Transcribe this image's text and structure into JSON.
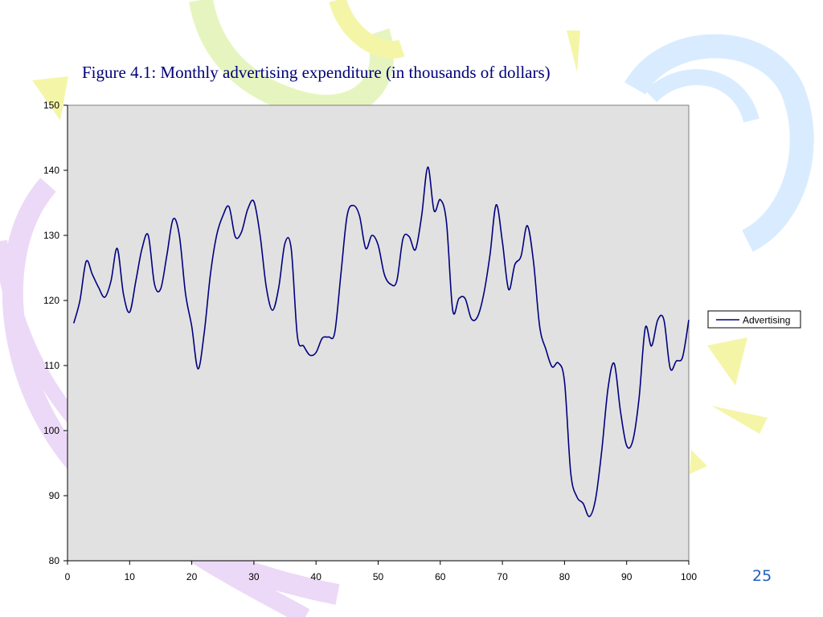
{
  "slide": {
    "title": "Figure 4.1:  Monthly advertising expenditure (in thousands of dollars)",
    "page_number": "25"
  },
  "colors": {
    "line": "#000080",
    "plot_background": "#e1e1e1",
    "deco_yellow": "#f5f5a8",
    "deco_green": "#e6f5bf",
    "deco_blue": "#d9ecff",
    "deco_purple": "#ecd9f7"
  },
  "chart_data": {
    "type": "line",
    "title": "Figure 4.1:  Monthly advertising expenditure (in thousands of dollars)",
    "xlabel": "",
    "ylabel": "",
    "xlim": [
      0,
      100
    ],
    "ylim": [
      80,
      150
    ],
    "xticks": [
      0,
      10,
      20,
      30,
      40,
      50,
      60,
      70,
      80,
      90,
      100
    ],
    "yticks": [
      80,
      90,
      100,
      110,
      120,
      130,
      140,
      150
    ],
    "grid": false,
    "legend": "right",
    "x": [
      1,
      2,
      3,
      4,
      5,
      6,
      7,
      8,
      9,
      10,
      11,
      12,
      13,
      14,
      15,
      16,
      17,
      18,
      19,
      20,
      21,
      22,
      23,
      24,
      25,
      26,
      27,
      28,
      29,
      30,
      31,
      32,
      33,
      34,
      35,
      36,
      37,
      38,
      39,
      40,
      41,
      42,
      43,
      44,
      45,
      46,
      47,
      48,
      49,
      50,
      51,
      52,
      53,
      54,
      55,
      56,
      57,
      58,
      59,
      60,
      61,
      62,
      63,
      64,
      65,
      66,
      67,
      68,
      69,
      70,
      71,
      72,
      73,
      74,
      75,
      76,
      77,
      78,
      79,
      80,
      81,
      82,
      83,
      84,
      85,
      86,
      87,
      88,
      89,
      90,
      91,
      92,
      93,
      94,
      95,
      96,
      97,
      98,
      99,
      100
    ],
    "series": [
      {
        "name": "Advertising",
        "values": [
          116.5,
          120,
          126,
          124,
          122,
          120.5,
          123,
          128,
          121,
          118.2,
          123,
          128,
          130,
          122.5,
          121.8,
          127,
          132.5,
          130,
          121,
          116,
          109.5,
          115,
          124,
          130,
          133,
          134.4,
          129.8,
          130.5,
          134,
          135.2,
          130,
          122,
          118.5,
          122,
          128.8,
          128,
          114.5,
          113,
          111.6,
          112,
          114.2,
          114.4,
          115,
          124,
          133,
          134.6,
          133,
          128,
          130,
          128.5,
          124,
          122.5,
          123,
          129.5,
          129.8,
          127.8,
          133,
          140.5,
          133.8,
          135.5,
          132,
          118.5,
          120.3,
          120.3,
          117.2,
          117.5,
          121,
          127,
          134.7,
          129,
          121.7,
          125.5,
          126.8,
          131.5,
          126,
          116,
          112.5,
          109.8,
          110.4,
          107.5,
          93.5,
          89.8,
          88.8,
          86.8,
          89.5,
          97,
          106.5,
          110.3,
          103,
          97.7,
          98.5,
          105,
          115.8,
          113,
          117,
          117,
          109.6,
          110.7,
          111.3,
          117
        ]
      }
    ]
  }
}
